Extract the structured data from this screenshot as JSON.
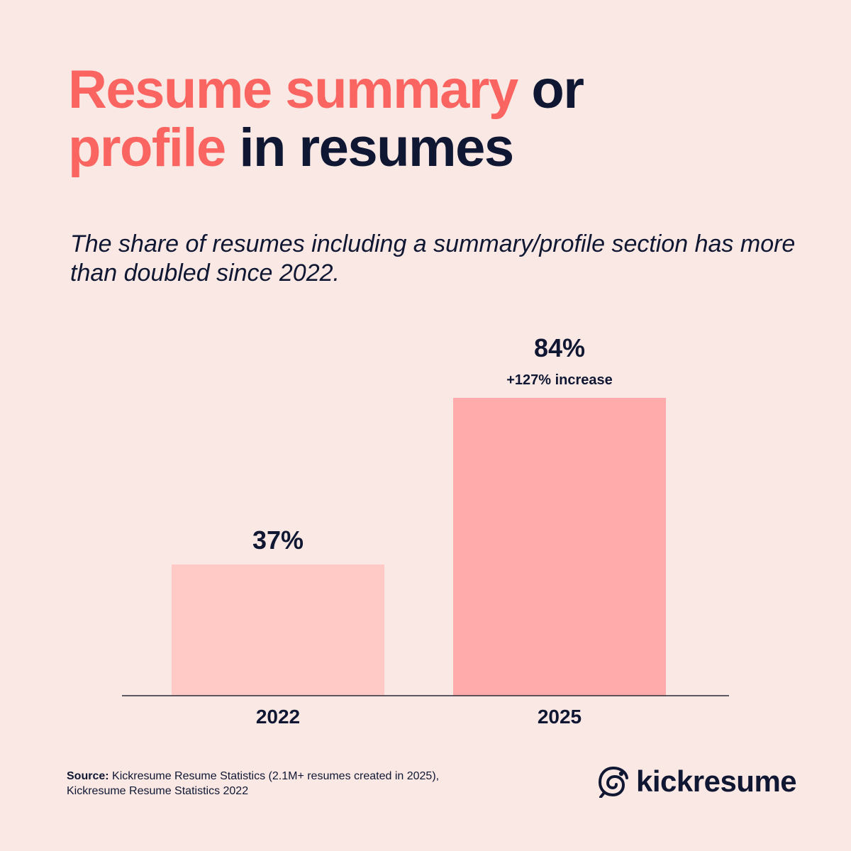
{
  "title": {
    "part1": "Resume summary",
    "part2": "or",
    "part3": "profile",
    "part4": "in resumes"
  },
  "subtitle": "The share of resumes including a summary/profile section has more than doubled since 2022.",
  "chart_data": {
    "type": "bar",
    "categories": [
      "2022",
      "2025"
    ],
    "values": [
      37,
      84
    ],
    "value_labels": [
      "37%",
      "84%"
    ],
    "annotations": [
      "",
      "+127% increase"
    ],
    "bar_colors": [
      "#FFC9C6",
      "#FFABAB"
    ],
    "ylim": [
      0,
      100
    ],
    "grid": false
  },
  "footer": {
    "source_label": "Source:",
    "source_text": "Kickresume Resume Statistics (2.1M+ resumes created in 2025),",
    "source_text2": "Kickresume Resume Statistics 2022"
  },
  "brand": {
    "name": "kickresume",
    "icon": "chameleon-logo-icon"
  },
  "colors": {
    "accent": "#FA6562",
    "dark": "#0F1733",
    "background": "#FAE8E4"
  }
}
